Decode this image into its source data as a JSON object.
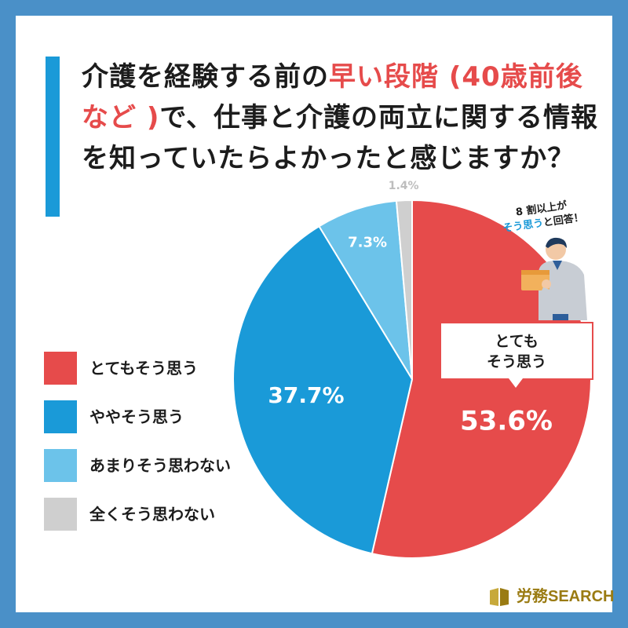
{
  "title": {
    "part1": "介護を経験する前の",
    "highlight": "早い段階 (40歳前後など )",
    "part2": "で、仕事と介護の両立に関する情報を知っていたらよかったと感じますか？"
  },
  "callout": {
    "line1": "とても",
    "line2": "そう思う"
  },
  "bubble": {
    "line1": "8 割以上が",
    "highlight": "そう思う",
    "line2_rest": "と回答！"
  },
  "logo": {
    "text": "労務SEARCH"
  },
  "colors": {
    "red": "#e64b4b",
    "blue": "#1a9ad8",
    "light_blue": "#6cc3ea",
    "gray": "#cfcfcf",
    "frame": "#4a90c8",
    "logo_gold": "#9a7b12"
  },
  "chart_data": {
    "type": "pie",
    "title": "介護を経験する前の早い段階 (40歳前後など ) で、仕事と介護の両立に関する情報を知っていたらよかったと感じますか？",
    "categories": [
      "とてもそう思う",
      "ややそう思う",
      "あまりそう思わない",
      "全くそう思わない"
    ],
    "values": [
      53.6,
      37.7,
      7.3,
      1.4
    ],
    "value_labels": [
      "53.6%",
      "37.7%",
      "7.3%",
      "1.4%"
    ],
    "colors": [
      "#e64b4b",
      "#1a9ad8",
      "#6cc3ea",
      "#cfcfcf"
    ],
    "start": "top",
    "direction": "clockwise",
    "legend": "left"
  }
}
